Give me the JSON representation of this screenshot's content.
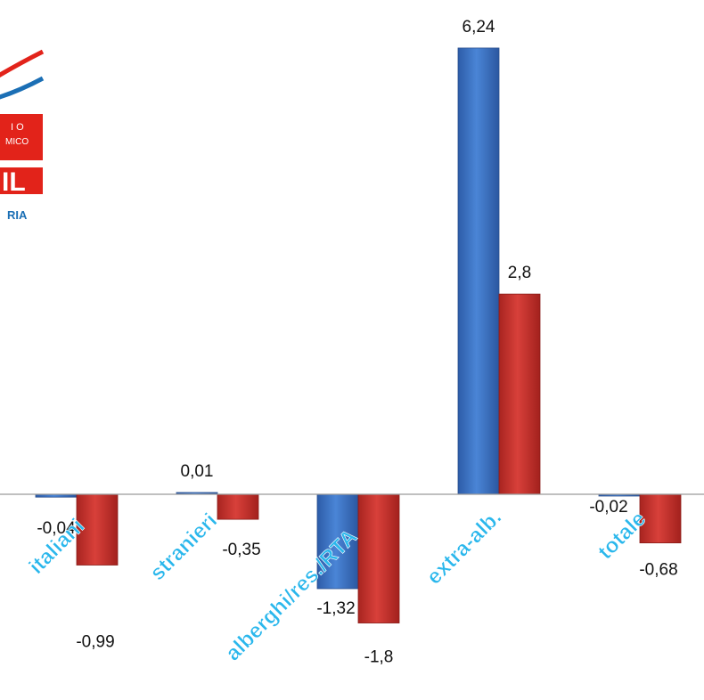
{
  "chart_data": {
    "type": "bar",
    "categories": [
      "italiani",
      "stranieri",
      "alberghi/res./RTA",
      "extra-alb.",
      "totale"
    ],
    "series": [
      {
        "values": [
          -0.04,
          0.01,
          -1.32,
          6.24,
          -0.02
        ],
        "labels": [
          "-0,04",
          "0,01",
          "-1,32",
          "6,24",
          "-0,02"
        ],
        "color": "#3a6fc0"
      },
      {
        "values": [
          -0.99,
          -0.35,
          -1.8,
          2.8,
          -0.68
        ],
        "labels": [
          "-0,99",
          "-0,35",
          "-1,8",
          "2,8",
          "-0,68"
        ],
        "color": "#c8302a"
      }
    ],
    "title": "",
    "xlabel": "",
    "ylabel": "",
    "grid": false,
    "legend": "none"
  },
  "logo": {
    "top_text": "I O",
    "sub_text": "MICO",
    "big_text": "IL",
    "bottom_text": "RIA",
    "colors": {
      "red": "#e2231a",
      "blue": "#1b6fb5"
    }
  }
}
